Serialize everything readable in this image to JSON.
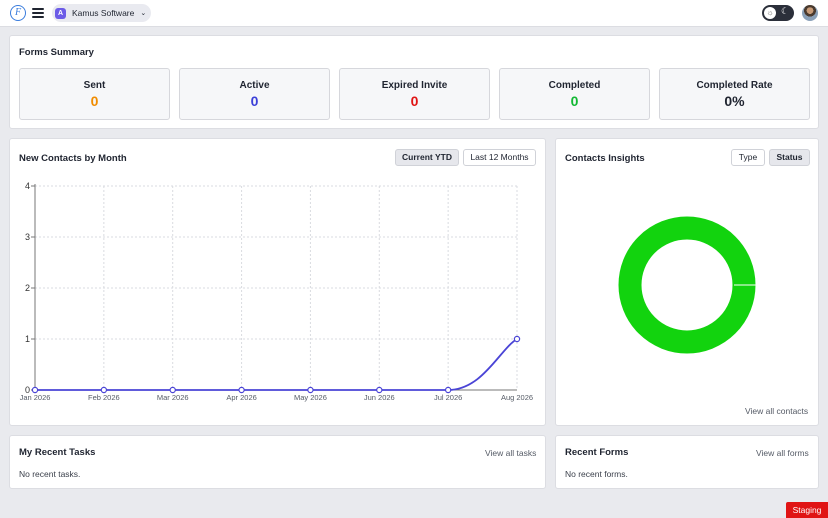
{
  "topbar": {
    "logo_letter": "F",
    "workspace": {
      "badge": "A",
      "name": "Kamus Software"
    }
  },
  "forms_summary": {
    "title": "Forms Summary",
    "stats": [
      {
        "label": "Sent",
        "value": "0",
        "color": "#f08c00"
      },
      {
        "label": "Active",
        "value": "0",
        "color": "#3b3fd8"
      },
      {
        "label": "Expired Invite",
        "value": "0",
        "color": "#e01414"
      },
      {
        "label": "Completed",
        "value": "0",
        "color": "#12b833"
      },
      {
        "label": "Completed Rate",
        "value": "0%",
        "color": "#1f2430"
      }
    ]
  },
  "contacts_chart": {
    "title": "New Contacts by Month",
    "buttons": [
      {
        "label": "Current YTD",
        "active": true
      },
      {
        "label": "Last 12 Months",
        "active": false
      }
    ]
  },
  "chart_data": {
    "type": "line",
    "categories": [
      "Jan 2026",
      "Feb 2026",
      "Mar 2026",
      "Apr 2026",
      "May 2026",
      "Jun 2026",
      "Jul 2026",
      "Aug 2026"
    ],
    "series": [
      {
        "values": [
          0,
          0,
          0,
          0,
          0,
          0,
          0,
          1
        ],
        "color": "#4a44d6"
      }
    ],
    "yticks": [
      "0",
      "1",
      "2",
      "3",
      "4"
    ],
    "ylim": [
      0,
      4
    ],
    "grid": true,
    "xlabel": "",
    "ylabel": ""
  },
  "insights": {
    "title": "Contacts Insights",
    "buttons": [
      {
        "label": "Type",
        "active": false
      },
      {
        "label": "Status",
        "active": true
      }
    ],
    "donut_color": "#12d30e",
    "view_all": "View all contacts"
  },
  "tasks": {
    "title": "My Recent Tasks",
    "view_all": "View all tasks",
    "empty": "No recent tasks."
  },
  "recent_forms": {
    "title": "Recent Forms",
    "view_all": "View all forms",
    "empty": "No recent forms."
  },
  "environment_badge": "Staging"
}
